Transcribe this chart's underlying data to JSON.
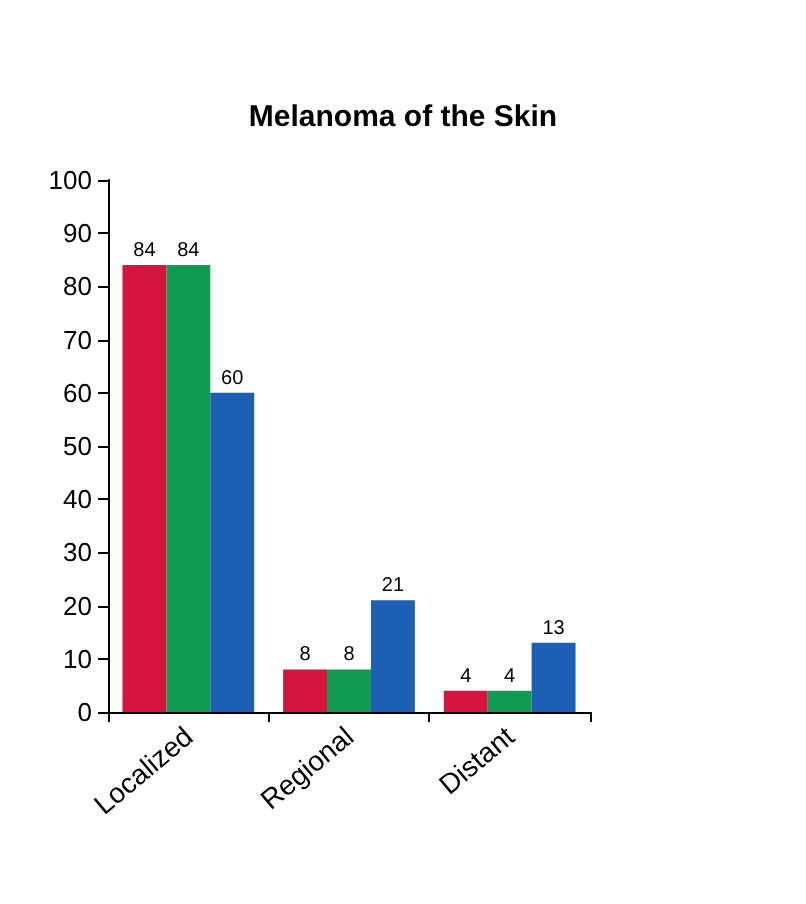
{
  "chart_data": {
    "type": "bar",
    "title": "Melanoma of the Skin",
    "categories": [
      "Localized",
      "Regional",
      "Distant"
    ],
    "series": [
      {
        "color": "#d4163f",
        "values": [
          84,
          8,
          4
        ]
      },
      {
        "color": "#109a52",
        "values": [
          84,
          8,
          4
        ]
      },
      {
        "color": "#1d5fb3",
        "values": [
          60,
          21,
          13
        ]
      }
    ],
    "ylim": [
      0,
      100
    ],
    "yticks": [
      0,
      10,
      20,
      30,
      40,
      50,
      60,
      70,
      80,
      90,
      100
    ],
    "grid": false,
    "data_labels": true
  }
}
